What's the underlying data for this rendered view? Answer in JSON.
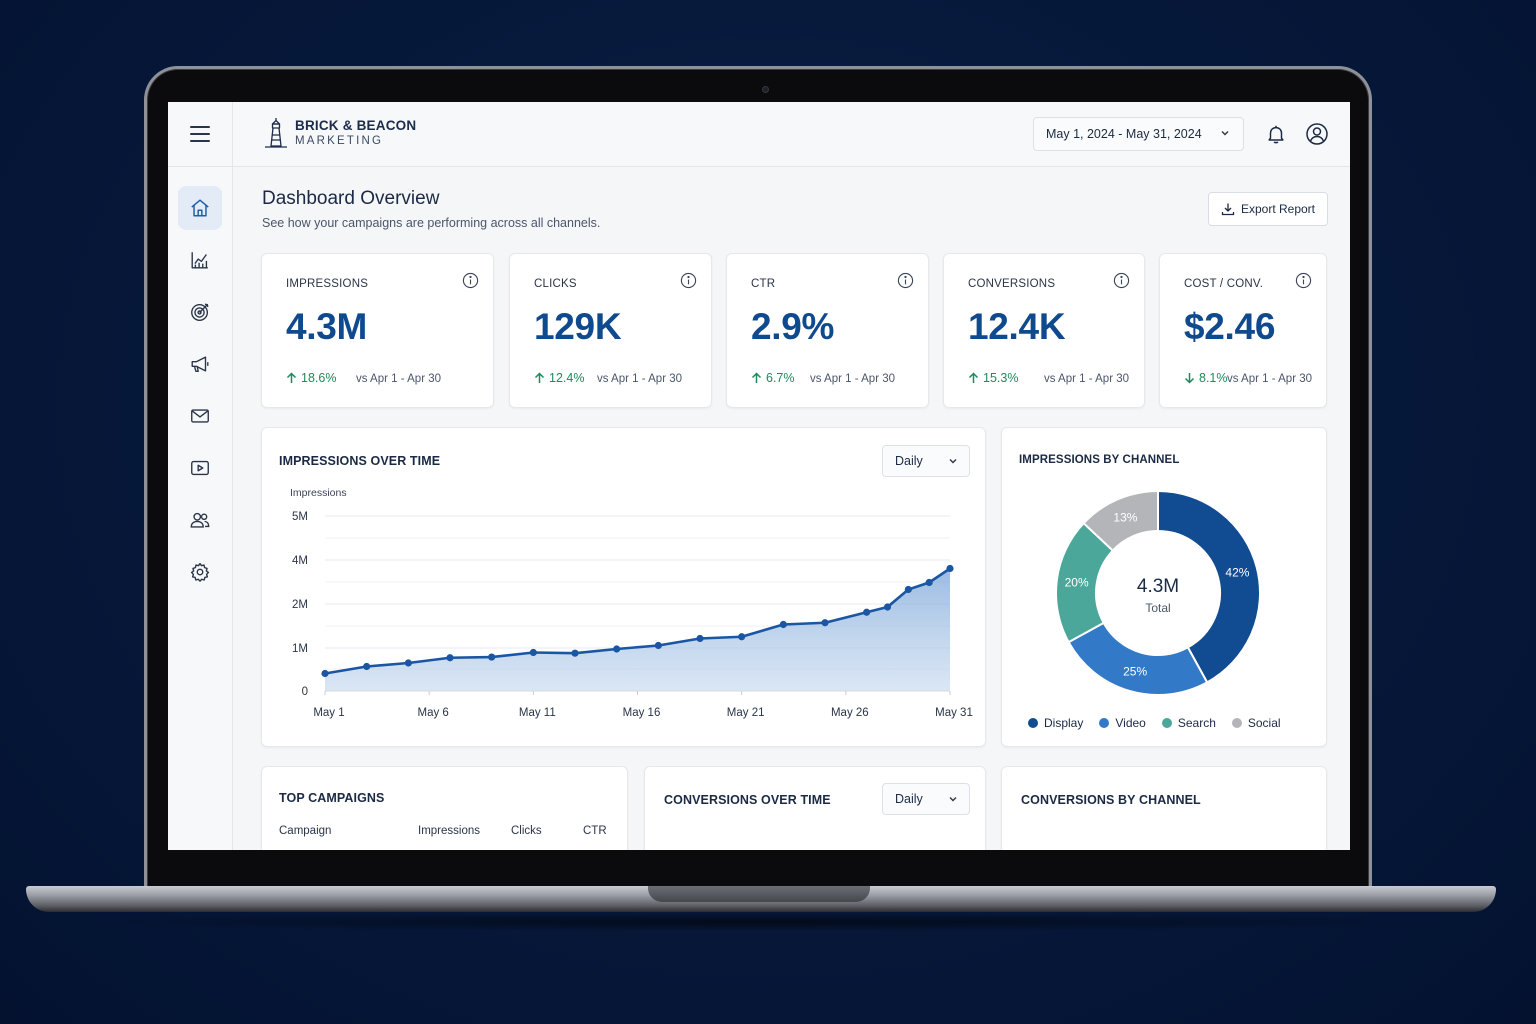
{
  "brand": {
    "name_top": "BRICK & BEACON",
    "name_bottom": "MARKETING"
  },
  "header": {
    "date_range": "May 1, 2024 - May 31, 2024"
  },
  "page": {
    "title": "Dashboard Overview",
    "subtitle": "See how your campaigns are performing across all channels.",
    "export_label": "Export Report"
  },
  "kpis": [
    {
      "label": "IMPRESSIONS",
      "value": "4.3M",
      "change": "18.6%",
      "direction": "up",
      "compare": "vs Apr 1 - Apr 30"
    },
    {
      "label": "CLICKS",
      "value": "129K",
      "change": "12.4%",
      "direction": "up",
      "compare": "vs Apr 1 - Apr 30"
    },
    {
      "label": "CTR",
      "value": "2.9%",
      "change": "6.7%",
      "direction": "up",
      "compare": "vs Apr 1 - Apr 30"
    },
    {
      "label": "CONVERSIONS",
      "value": "12.4K",
      "change": "15.3%",
      "direction": "up",
      "compare": "vs Apr 1 - Apr 30"
    },
    {
      "label": "COST / CONV.",
      "value": "$2.46",
      "change": "8.1%",
      "direction": "down",
      "compare": "vs Apr 1 - Apr 30"
    }
  ],
  "impressions_chart": {
    "title": "IMPRESSIONS OVER TIME",
    "granularity": "Daily"
  },
  "channel_chart": {
    "title": "IMPRESSIONS BY CHANNEL",
    "center_value": "4.3M",
    "center_label": "Total"
  },
  "top_campaigns": {
    "title": "TOP CAMPAIGNS",
    "columns": [
      "Campaign",
      "Impressions",
      "Clicks",
      "CTR"
    ]
  },
  "conversions_chart": {
    "title": "CONVERSIONS OVER TIME",
    "granularity": "Daily"
  },
  "conversions_channel": {
    "title": "CONVERSIONS BY CHANNEL"
  },
  "colors": {
    "accent": "#0f4a8f",
    "positive": "#1e8a5a",
    "display": "#114b91",
    "video": "#3279c8",
    "search": "#4aa79a",
    "social": "#b3b5b9"
  },
  "chart_data": [
    {
      "type": "area",
      "title": "IMPRESSIONS OVER TIME",
      "ylabel": "Impressions",
      "x_ticks": [
        "May 1",
        "May 6",
        "May 11",
        "May 16",
        "May 21",
        "May 26",
        "May 31"
      ],
      "y_ticks": [
        "0",
        "1M",
        "2M",
        "4M",
        "5M"
      ],
      "ylim": [
        0,
        5
      ],
      "x": [
        1,
        3,
        5,
        7,
        9,
        11,
        13,
        15,
        17,
        19,
        21,
        23,
        25,
        27,
        28,
        29,
        30,
        31
      ],
      "series": [
        {
          "values": [
            0.5,
            0.7,
            0.8,
            0.95,
            0.97,
            1.1,
            1.08,
            1.2,
            1.3,
            1.5,
            1.55,
            1.9,
            1.95,
            2.25,
            2.4,
            2.9,
            3.1,
            3.5
          ]
        }
      ],
      "grid": true
    },
    {
      "type": "pie",
      "title": "IMPRESSIONS BY CHANNEL",
      "labels": [
        "Display",
        "Video",
        "Search",
        "Social"
      ],
      "values": [
        42,
        25,
        20,
        13
      ],
      "value_labels": [
        "42%",
        "25%",
        "20%",
        "13%"
      ],
      "legend": "bottom"
    }
  ]
}
